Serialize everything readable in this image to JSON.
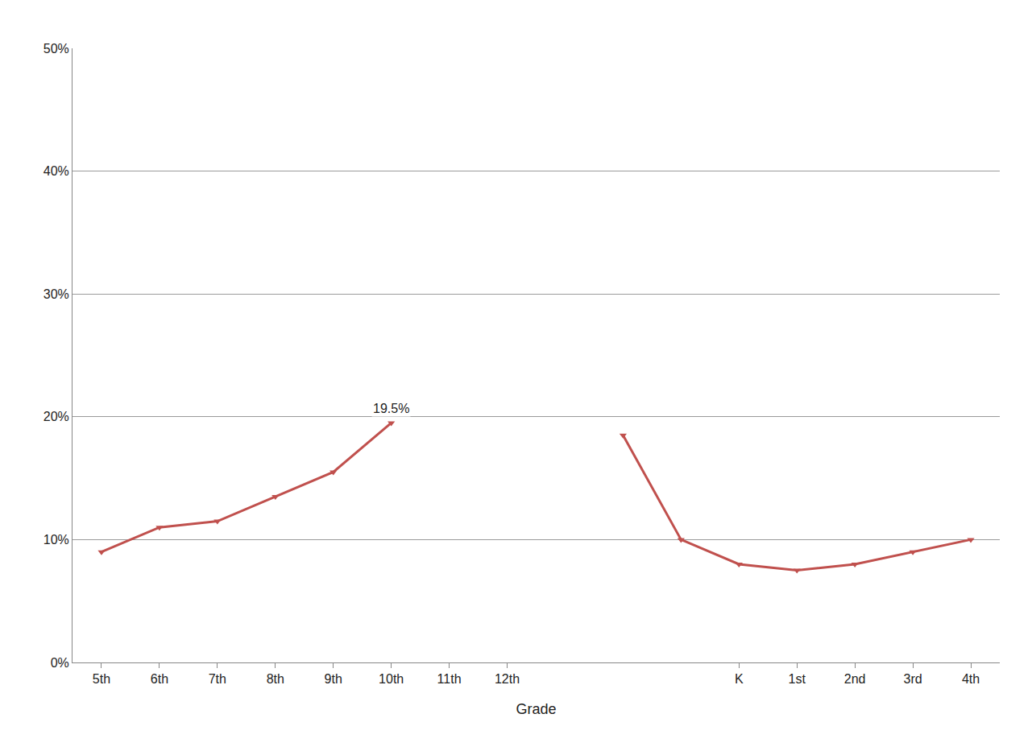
{
  "chart_data": {
    "type": "line",
    "x_label": "Grade",
    "categories": [
      "5th",
      "6th",
      "7th",
      "8th",
      "9th",
      "10th",
      "11th",
      "12th",
      null,
      null,
      null,
      "K",
      "1st",
      "2nd",
      "3rd",
      "4th"
    ],
    "series": [
      {
        "name": "Grade",
        "color": "#c0504d",
        "marker": "triangle-down",
        "line_style": "solid",
        "values": [
          9,
          11,
          11.5,
          13.5,
          15.5,
          19.5,
          null,
          null,
          null,
          18.5,
          10,
          8,
          7.5,
          8,
          9,
          10
        ]
      }
    ],
    "annotations": [
      {
        "category": "10th",
        "value": 19.5,
        "text": "19.5%"
      }
    ],
    "ylim": [
      0,
      50
    ],
    "yticks": [
      {
        "value": 0,
        "label": "0%"
      },
      {
        "value": 10,
        "label": "10%"
      },
      {
        "value": 20,
        "label": "20%"
      },
      {
        "value": 30,
        "label": "30%"
      },
      {
        "value": 40,
        "label": "40%"
      },
      {
        "value": 50,
        "label": "50%"
      }
    ],
    "grid": true
  }
}
